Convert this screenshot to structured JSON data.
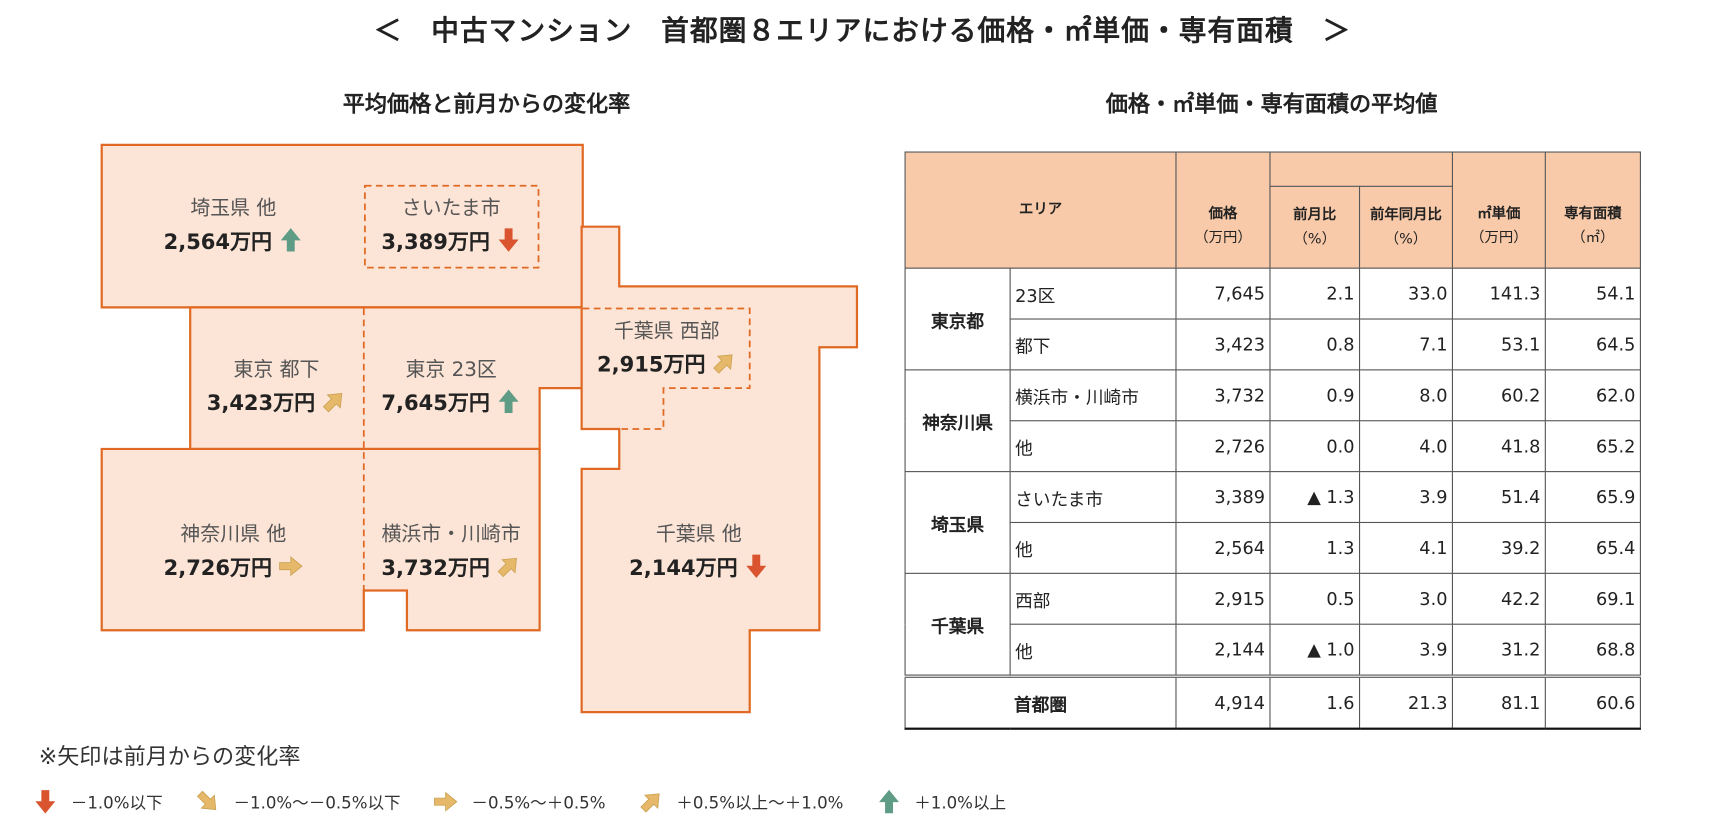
{
  "title": "＜　中古マンション　首都圏８エリアにおける価格・㎡単価・専有面積　＞",
  "map_section": {
    "title": "平均価格と前月からの変化率",
    "areas": [
      {
        "key": "saitama-other",
        "name": "埼玉県 他",
        "price": "2,564万円",
        "trend": "up"
      },
      {
        "key": "saitama-city",
        "name": "さいたま市",
        "price": "3,389万円",
        "trend": "down"
      },
      {
        "key": "tokyo-other",
        "name": "東京 都下",
        "price": "3,423万円",
        "trend": "up-right"
      },
      {
        "key": "tokyo-23",
        "name": "東京 23区",
        "price": "7,645万円",
        "trend": "up"
      },
      {
        "key": "chiba-west",
        "name": "千葉県 西部",
        "price": "2,915万円",
        "trend": "up-right"
      },
      {
        "key": "kanagawa-other",
        "name": "神奈川県 他",
        "price": "2,726万円",
        "trend": "right"
      },
      {
        "key": "yokohama-kawasaki",
        "name": "横浜市・川崎市",
        "price": "3,732万円",
        "trend": "up-right"
      },
      {
        "key": "chiba-other",
        "name": "千葉県 他",
        "price": "2,144万円",
        "trend": "down"
      }
    ]
  },
  "table_section": {
    "title": "価格・㎡単価・専有面積の平均値",
    "headers": {
      "area": "エリア",
      "price": "価格",
      "price_unit": "（万円）",
      "mom": "前月比",
      "mom_unit": "（%）",
      "yoy": "前年同月比",
      "yoy_unit": "（%）",
      "unit_price": "㎡単価",
      "unit_price_unit": "（万円）",
      "size": "専有面積",
      "size_unit": "（㎡）"
    },
    "groups": [
      {
        "pref": "東京都",
        "rows": [
          [
            "23区",
            "7,645",
            "2.1",
            "33.0",
            "141.3",
            "54.1"
          ],
          [
            "都下",
            "3,423",
            "0.8",
            "7.1",
            "53.1",
            "64.5"
          ]
        ]
      },
      {
        "pref": "神奈川県",
        "rows": [
          [
            "横浜市・川崎市",
            "3,732",
            "0.9",
            "8.0",
            "60.2",
            "62.0"
          ],
          [
            "他",
            "2,726",
            "0.0",
            "4.0",
            "41.8",
            "65.2"
          ]
        ]
      },
      {
        "pref": "埼玉県",
        "rows": [
          [
            "さいたま市",
            "3,389",
            "▲ 1.3",
            "3.9",
            "51.4",
            "65.9"
          ],
          [
            "他",
            "2,564",
            "1.3",
            "4.1",
            "39.2",
            "65.4"
          ]
        ]
      },
      {
        "pref": "千葉県",
        "rows": [
          [
            "西部",
            "2,915",
            "0.5",
            "3.0",
            "42.2",
            "69.1"
          ],
          [
            "他",
            "2,144",
            "▲ 1.0",
            "3.9",
            "31.2",
            "68.8"
          ]
        ]
      }
    ],
    "total": [
      "首都圏",
      "4,914",
      "1.6",
      "21.3",
      "81.1",
      "60.6"
    ]
  },
  "note": "※矢印は前月からの変化率",
  "legend": [
    {
      "trend": "down",
      "label": "－1.0%以下"
    },
    {
      "trend": "down-right",
      "label": "－1.0%～－0.5%以下"
    },
    {
      "trend": "right",
      "label": "－0.5%～＋0.5%"
    },
    {
      "trend": "up-right",
      "label": "＋0.5%以上～＋1.0%"
    },
    {
      "trend": "up",
      "label": "＋1.0%以上"
    }
  ],
  "colors": {
    "map_fill": "#fce4d6",
    "map_stroke": "#e06a24",
    "table_header": "#f8caa9",
    "arrow_down": "#d9542f",
    "arrow_mid": "#e6b96a",
    "arrow_up": "#5f9c86"
  }
}
